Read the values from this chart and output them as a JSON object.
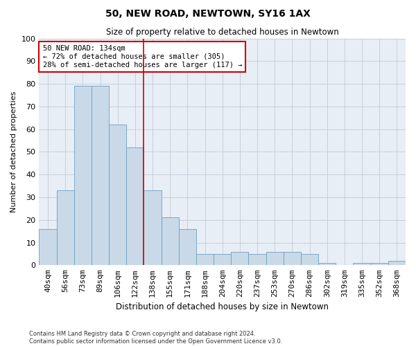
{
  "title": "50, NEW ROAD, NEWTOWN, SY16 1AX",
  "subtitle": "Size of property relative to detached houses in Newtown",
  "xlabel": "Distribution of detached houses by size in Newtown",
  "ylabel": "Number of detached properties",
  "bar_labels": [
    "40sqm",
    "56sqm",
    "73sqm",
    "89sqm",
    "106sqm",
    "122sqm",
    "138sqm",
    "155sqm",
    "171sqm",
    "188sqm",
    "204sqm",
    "220sqm",
    "237sqm",
    "253sqm",
    "270sqm",
    "286sqm",
    "302sqm",
    "319sqm",
    "335sqm",
    "352sqm",
    "368sqm"
  ],
  "bar_values": [
    16,
    33,
    79,
    79,
    62,
    52,
    33,
    21,
    16,
    5,
    5,
    6,
    5,
    6,
    6,
    5,
    1,
    0,
    1,
    1,
    2
  ],
  "bar_color": "#c9d9e8",
  "bar_edge_color": "#6a9fc0",
  "annotation_text_line1": "50 NEW ROAD: 134sqm",
  "annotation_text_line2": "← 72% of detached houses are smaller (305)",
  "annotation_text_line3": "28% of semi-detached houses are larger (117) →",
  "annotation_box_color": "#ffffff",
  "annotation_box_edge": "#cc0000",
  "vline_x": 5.5,
  "ylim": [
    0,
    100
  ],
  "yticks": [
    0,
    10,
    20,
    30,
    40,
    50,
    60,
    70,
    80,
    90,
    100
  ],
  "grid_color": "#c0ccd8",
  "background_color": "#e8eef5",
  "footer_line1": "Contains HM Land Registry data © Crown copyright and database right 2024.",
  "footer_line2": "Contains public sector information licensed under the Open Government Licence v3.0."
}
